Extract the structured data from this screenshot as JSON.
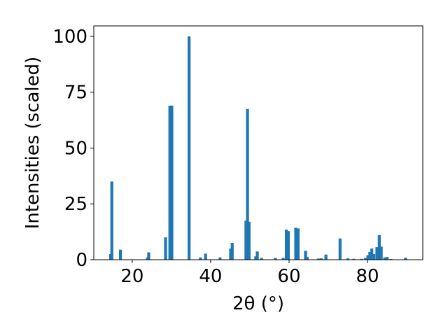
{
  "chart_data": {
    "type": "bar",
    "xlabel": "2θ (°)",
    "ylabel": "Intensities (scaled)",
    "x": [
      14.5,
      14.8,
      17.0,
      23.9,
      24.2,
      28.5,
      29.6,
      30.1,
      34.5,
      37.4,
      38.7,
      42.4,
      45.1,
      45.5,
      49.0,
      49.4,
      49.8,
      51.5,
      51.9,
      53.0,
      56.5,
      58.5,
      59.3,
      59.8,
      61.7,
      62.3,
      64.2,
      64.6,
      67.5,
      68.2,
      69.4,
      73.0,
      75.0,
      76.5,
      78.5,
      79.5,
      80.1,
      80.6,
      81.1,
      81.6,
      82.4,
      83.0,
      83.5,
      84.4,
      85.0,
      86.0,
      89.7
    ],
    "values": [
      2.5,
      35,
      4.5,
      1.0,
      3.3,
      10,
      69,
      69,
      100,
      1.0,
      2.7,
      1.0,
      5.0,
      7.5,
      17.5,
      67.5,
      17,
      1.5,
      3.7,
      0.8,
      0.8,
      0.8,
      13.5,
      12.8,
      14.3,
      14.0,
      4.0,
      1.3,
      0.5,
      0.6,
      2.3,
      9.5,
      0.6,
      0.4,
      0.4,
      0.8,
      2.0,
      3.5,
      5.0,
      2.5,
      5.6,
      11,
      5.8,
      1.0,
      1.2,
      0.3,
      0.9
    ],
    "color": "#1f77b4",
    "xlim": [
      10.2,
      94.1
    ],
    "xticks": [
      20,
      40,
      60,
      80
    ],
    "ylim": [
      0,
      104.7
    ],
    "yticks": [
      0,
      25,
      50,
      75,
      100
    ]
  }
}
